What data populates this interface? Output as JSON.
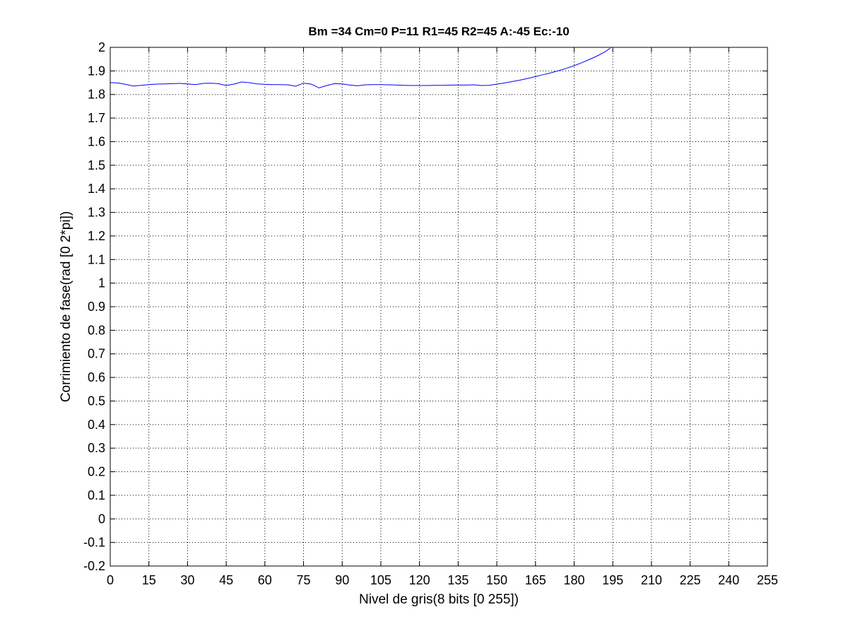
{
  "chart_data": {
    "type": "line",
    "title": "Bm =34  Cm=0  P=11  R1=45  R2=45  A:-45  Ec:-10",
    "xlabel": "Nivel de gris(8 bits [0 255])",
    "ylabel": "Corrimiento de fase(rad [0 2*pi])",
    "xlim": [
      0,
      255
    ],
    "ylim": [
      -0.2,
      2
    ],
    "xticks": [
      0,
      15,
      30,
      45,
      60,
      75,
      90,
      105,
      120,
      135,
      150,
      165,
      180,
      195,
      210,
      225,
      240,
      255
    ],
    "xtick_labels": [
      "0",
      "15",
      "30",
      "45",
      "60",
      "75",
      "90",
      "105",
      "120",
      "135",
      "150",
      "165",
      "180",
      "195",
      "210",
      "225",
      "240",
      "255"
    ],
    "yticks": [
      2,
      1.9,
      1.8,
      1.7,
      1.6,
      1.5,
      1.4,
      1.3,
      1.2,
      1.1,
      1,
      0.9,
      0.8,
      0.7,
      0.6,
      0.5,
      0.4,
      0.3,
      0.2,
      0.1,
      0,
      -0.1,
      -0.2
    ],
    "ytick_labels": [
      "2",
      "1.9",
      "1.8",
      "1.7",
      "1.6",
      "1.5",
      "1.4",
      "1.3",
      "1.2",
      "1.1",
      "1",
      "0.9",
      "0.8",
      "0.7",
      "0.6",
      "0.5",
      "0.4",
      "0.3",
      "0.2",
      "0.1",
      "0",
      "-0.1",
      "-0.2"
    ],
    "grid": true,
    "legend": "none",
    "line_color": "#0000ff",
    "series": [
      {
        "x": [
          0,
          3,
          6,
          9,
          12,
          15,
          18,
          21,
          24,
          27,
          30,
          33,
          36,
          39,
          42,
          45,
          48,
          51,
          54,
          57,
          60,
          63,
          66,
          69,
          72,
          75,
          78,
          81,
          84,
          87,
          90,
          93,
          96,
          99,
          102,
          105,
          108,
          111,
          114,
          117,
          120,
          123,
          126,
          129,
          132,
          135,
          138,
          141,
          144,
          147,
          150,
          153,
          156,
          159,
          162,
          165,
          168,
          171,
          174,
          177,
          180,
          183,
          186,
          189,
          192,
          194
        ],
        "y": [
          1.85,
          1.849,
          1.843,
          1.836,
          1.839,
          1.842,
          1.844,
          1.845,
          1.846,
          1.847,
          1.845,
          1.842,
          1.847,
          1.848,
          1.846,
          1.838,
          1.844,
          1.853,
          1.85,
          1.845,
          1.843,
          1.842,
          1.842,
          1.841,
          1.835,
          1.848,
          1.844,
          1.828,
          1.838,
          1.846,
          1.845,
          1.84,
          1.837,
          1.841,
          1.842,
          1.842,
          1.841,
          1.84,
          1.839,
          1.838,
          1.838,
          1.838,
          1.839,
          1.839,
          1.84,
          1.84,
          1.84,
          1.841,
          1.838,
          1.839,
          1.844,
          1.849,
          1.855,
          1.861,
          1.868,
          1.876,
          1.884,
          1.892,
          1.901,
          1.911,
          1.922,
          1.935,
          1.949,
          1.964,
          1.981,
          1.997
        ]
      }
    ]
  }
}
